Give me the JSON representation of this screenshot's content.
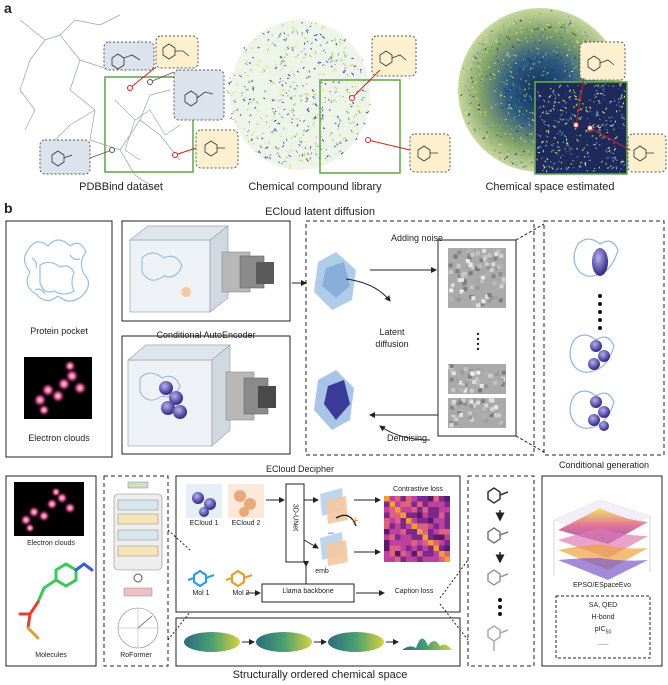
{
  "panel_a": {
    "letter": "a",
    "labels": [
      "PDBBind dataset",
      "Chemical compound library",
      "Chemical space estimated"
    ]
  },
  "panel_b": {
    "letter": "b",
    "latent_title": "ECloud latent diffusion",
    "protein_pocket": "Protein pocket",
    "electron_clouds": "Electron clouds",
    "conditional_autoencoder": "Conditional AutoEncoder",
    "adding_noise": "Adding noise",
    "latent_diffusion": "Latent\ndiffusion",
    "denoising": "Denoising",
    "conditional_generation": "Conditional generation",
    "decipher_title": "ECloud Decipher",
    "electron_clouds_2": "Electron clouds",
    "molecules": "Molecules",
    "roformer": "RoFormer",
    "ecloud1": "ECloud 1",
    "ecloud2": "ECloud 2",
    "unet": "3D-UNet",
    "contrastive_loss": "Contrastive loss",
    "emb": "emb",
    "mol1": "Mol 1",
    "mol2": "Mol 2",
    "llama": "Llama backbone",
    "caption_loss": "Caption loss",
    "epso": "EPSO/ESpaceEvo",
    "props": [
      "SA, QED",
      "H-bond",
      "pIC",
      "......"
    ],
    "pic_sub": "50",
    "bottom_title": "Structurally ordered chemical space"
  },
  "colors": {
    "green_box": "#6aa84f",
    "yellow_mol": "#fdf0cf",
    "grey_mol": "#dde3ec",
    "red_arrow": "#d02020",
    "purple": "#4b3b8f",
    "blue_pocket": "#8fb6e0"
  }
}
